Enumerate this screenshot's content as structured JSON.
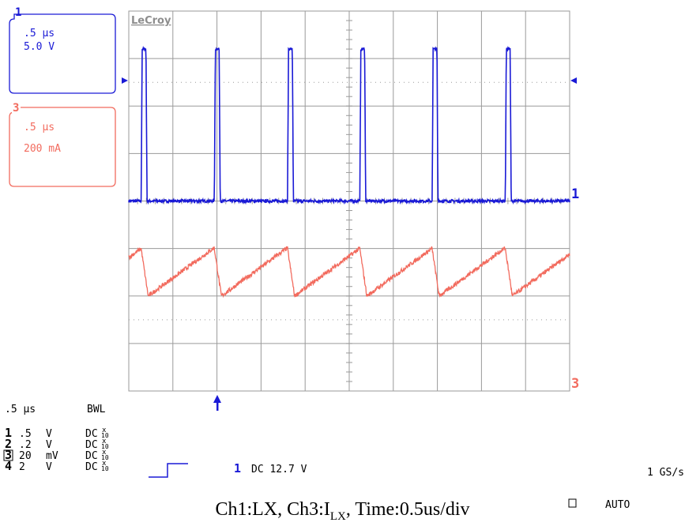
{
  "brand": "LeCroy",
  "colors": {
    "ch1": "#1a1ad6",
    "ch3": "#f26b5e",
    "grid": "#9a9a9a",
    "text": "#000000"
  },
  "ch1_box": {
    "id": "1",
    "timebase": ".5 µs",
    "scale": "5.0 V"
  },
  "ch3_box": {
    "id": "3",
    "timebase": ".5 µs",
    "scale": "200 mA"
  },
  "trace_labels": {
    "ch1": "1",
    "ch3": "3"
  },
  "trigger_icon": "up-arrow-icon",
  "status": {
    "timebase": ".5 µs",
    "bwl": "BWL",
    "channels": [
      {
        "id": "1",
        "value": ".5",
        "unit": "V",
        "coupling": "DC",
        "probe_x": "x",
        "probe_n": "10"
      },
      {
        "id": "2",
        "value": ".2",
        "unit": "V",
        "coupling": "DC",
        "probe_x": "x",
        "probe_n": "10"
      },
      {
        "id": "3",
        "value": "20",
        "unit": "mV",
        "coupling": "DC",
        "probe_x": "x",
        "probe_n": "10"
      },
      {
        "id": "4",
        "value": "2",
        "unit": "V",
        "coupling": "DC",
        "probe_x": "x",
        "probe_n": "10"
      }
    ],
    "trigger_channel": "1",
    "trigger_text": "DC 12.7 V",
    "sample_rate": "1 GS/s",
    "mode": "AUTO"
  },
  "caption": {
    "part1": "Ch1:LX, Ch3:I",
    "sub": "LX",
    "part2": ", Time:0.5us/div"
  },
  "chart_data": {
    "type": "line",
    "title": "",
    "xlabel": "",
    "ylabel": "",
    "x_divisions": 10,
    "y_divisions": 8,
    "x_units": "time (us)",
    "xlim": [
      0,
      5
    ],
    "series": [
      {
        "name": "1",
        "channel": 1,
        "scale_per_div": "5.0 V",
        "shape": "pulse",
        "low_div": 0,
        "high_div": 3.2,
        "period_us": 0.818,
        "pulse_width_us": 0.055,
        "rise_times_us": [
          0.14,
          0.97,
          1.8,
          2.62,
          3.44,
          4.27,
          5.09
        ]
      },
      {
        "name": "3",
        "channel": 3,
        "scale_per_div": "200 mA",
        "shape": "triangle",
        "offset_div": -1.2,
        "peak_div": 0.2,
        "valley_div": -0.8,
        "period_us": 0.818,
        "peak_times_us": [
          0.14,
          0.97,
          1.8,
          2.62,
          3.44,
          4.27,
          5.09
        ]
      }
    ]
  }
}
